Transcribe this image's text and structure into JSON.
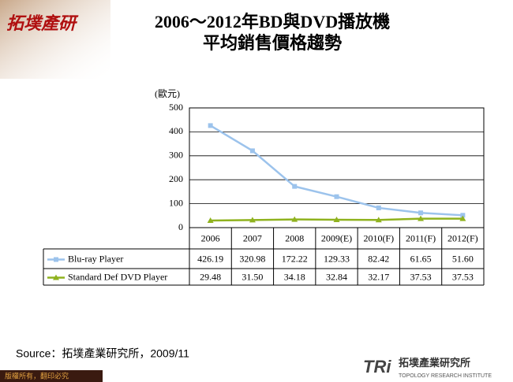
{
  "logo": {
    "mark": "拓墣產研",
    "name": "拓墣產業研究所",
    "brand": "TRi",
    "english": "TOPOLOGY RESEARCH INSTITUTE"
  },
  "footer": "版權所有，翻印必究",
  "source": "Source：拓墣產業研究所，2009/11",
  "chart_data": {
    "type": "line",
    "title": [
      "2006～2012年BD與DVD播放機",
      "平均銷售價格趨勢"
    ],
    "y_label": "(歐元)",
    "categories": [
      "2006",
      "2007",
      "2008",
      "2009(E)",
      "2010(F)",
      "2011(F)",
      "2012(F)"
    ],
    "series": [
      {
        "name": "Blu-ray Player",
        "color": "#9cc3ec",
        "marker": "square",
        "values": [
          426.19,
          320.98,
          172.22,
          129.33,
          82.42,
          61.65,
          51.6
        ],
        "value_labels": [
          "426.19",
          "320.98",
          "172.22",
          "129.33",
          "82.42",
          "61.65",
          "51.60"
        ]
      },
      {
        "name": "Standard Def DVD Player",
        "color": "#8fb21e",
        "marker": "triangle",
        "values": [
          29.48,
          31.5,
          34.18,
          32.84,
          32.17,
          37.53,
          37.53
        ],
        "value_labels": [
          "29.48",
          "31.50",
          "34.18",
          "32.84",
          "32.17",
          "37.53",
          "37.53"
        ]
      }
    ],
    "ylim": [
      0,
      500
    ],
    "yticks": [
      0,
      100,
      200,
      300,
      400,
      500
    ],
    "grid": true
  }
}
